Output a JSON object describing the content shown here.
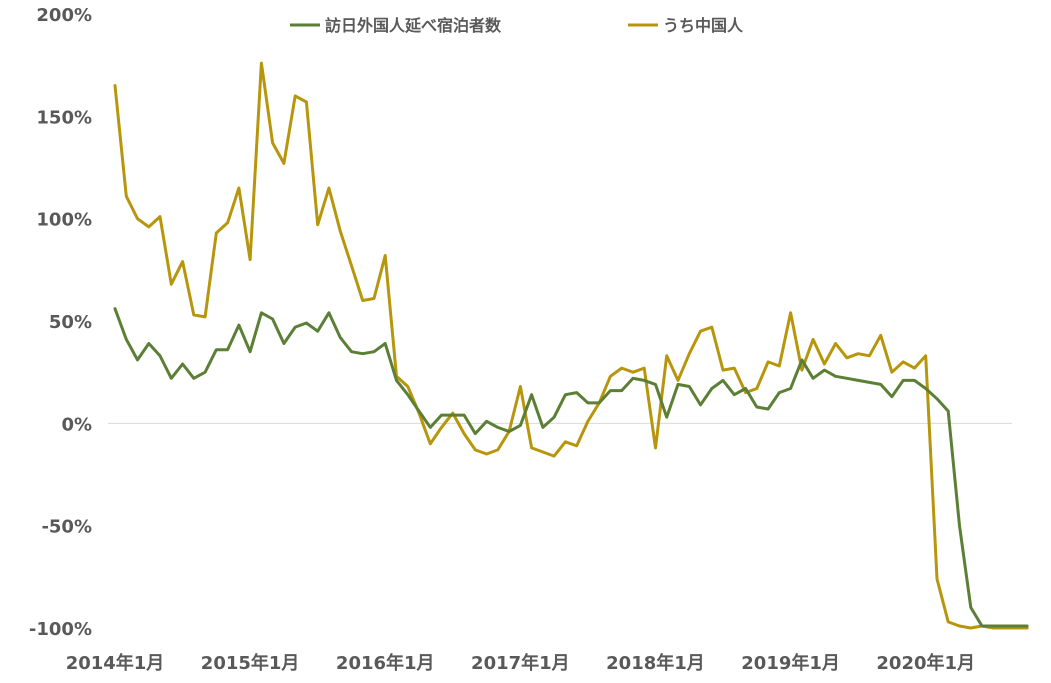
{
  "chart_data": {
    "type": "line",
    "title": "",
    "xlabel": "",
    "ylabel": "",
    "ylim": [
      -100,
      200
    ],
    "grid": false,
    "legend_position": "top-center",
    "y_ticks": [
      "200%",
      "150%",
      "100%",
      "50%",
      "0%",
      "-50%",
      "-100%"
    ],
    "y_tick_values": [
      200,
      150,
      100,
      50,
      0,
      -50,
      -100
    ],
    "x_tick_labels": [
      "2014年1月",
      "2015年1月",
      "2016年1月",
      "2017年1月",
      "2018年1月",
      "2019年1月",
      "2020年1月"
    ],
    "x_start": "2014-01",
    "x_end": "2020-09",
    "series": [
      {
        "name": "訪日外国人延べ宿泊者数",
        "color": "#5b7f35",
        "values": [
          56,
          41,
          31,
          39,
          33,
          22,
          29,
          22,
          25,
          36,
          36,
          48,
          35,
          54,
          51,
          39,
          47,
          49,
          45,
          54,
          42,
          35,
          34,
          35,
          39,
          21,
          14,
          6,
          -2,
          4,
          4,
          4,
          -5,
          1,
          -2,
          -4,
          -1,
          14,
          -2,
          3,
          14,
          15,
          10,
          10,
          16,
          16,
          22,
          21,
          19,
          3,
          19,
          18,
          9,
          17,
          21,
          14,
          17,
          8,
          7,
          15,
          17,
          31,
          22,
          26,
          23,
          22,
          21,
          20,
          19,
          13,
          21,
          21,
          17,
          12,
          6,
          -50,
          -90,
          -99,
          -99,
          -99,
          -99,
          -99
        ]
      },
      {
        "name": "うち中国人",
        "color": "#b8960c",
        "values": [
          165,
          111,
          100,
          96,
          101,
          68,
          79,
          53,
          52,
          93,
          98,
          115,
          80,
          176,
          137,
          127,
          160,
          157,
          97,
          115,
          94,
          77,
          60,
          61,
          82,
          23,
          18,
          5,
          -10,
          -2,
          5,
          -5,
          -13,
          -15,
          -13,
          -4,
          18,
          -12,
          -14,
          -16,
          -9,
          -11,
          1,
          10,
          23,
          27,
          25,
          27,
          -12,
          33,
          21,
          34,
          45,
          47,
          26,
          27,
          15,
          17,
          30,
          28,
          54,
          26,
          41,
          29,
          39,
          32,
          34,
          33,
          43,
          25,
          30,
          27,
          33,
          -76,
          -97,
          -99,
          -100,
          -99,
          -100,
          -100,
          -100,
          -100
        ]
      }
    ]
  }
}
